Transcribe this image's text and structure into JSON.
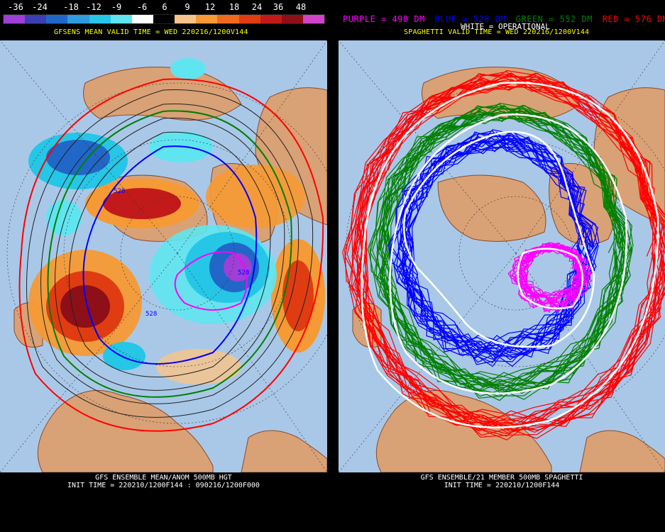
{
  "left": {
    "colorbar": {
      "labels": [
        "-36",
        "-24",
        "-18",
        "-12",
        "-9",
        "-6",
        "6",
        "9",
        "12",
        "18",
        "24",
        "36",
        "48"
      ],
      "colors": [
        "#9e3fd6",
        "#3b3fb4",
        "#2167c8",
        "#2f9be0",
        "#26c6e6",
        "#5fe5f0",
        "#ffffff",
        "#000000",
        "#f6c48b",
        "#f59a34",
        "#f06a1c",
        "#e03c12",
        "#c21a1a",
        "#8e0f17",
        "#d042c8"
      ]
    },
    "title": "GFSENS MEAN VALID TIME = WED 220216/1200V144",
    "footer_line1": "GFS ENSEMBLE MEAN/ANOM 500MB HGT",
    "footer_line2": "INIT TIME = 220210/1200F144 : 090216/1200F000",
    "contour_labels": [
      "528",
      "528",
      "528"
    ]
  },
  "right": {
    "legend": {
      "purple": "PURPLE = 498 DM",
      "blue": "BLUE = 528 DM",
      "green": "GREEN = 552 DM",
      "red": "RED = 576 DM"
    },
    "title": "SPAGHETTI VALID TIME = WED 220216/1200V144",
    "subtitle": "WHITE = OPERATIONAL",
    "footer_line1": "GFS ENSEMBLE/21 MEMBER 500MB SPAGHETTI",
    "footer_line2": "INIT TIME = 220210/1200F144"
  },
  "colors": {
    "ocean": "#a9c8e8",
    "land": "#d9a176",
    "border": "#8a4a2a",
    "title": "#ffff00",
    "purple": "#ff00ff",
    "blue": "#0000ff",
    "green": "#008000",
    "red": "#ff0000"
  }
}
